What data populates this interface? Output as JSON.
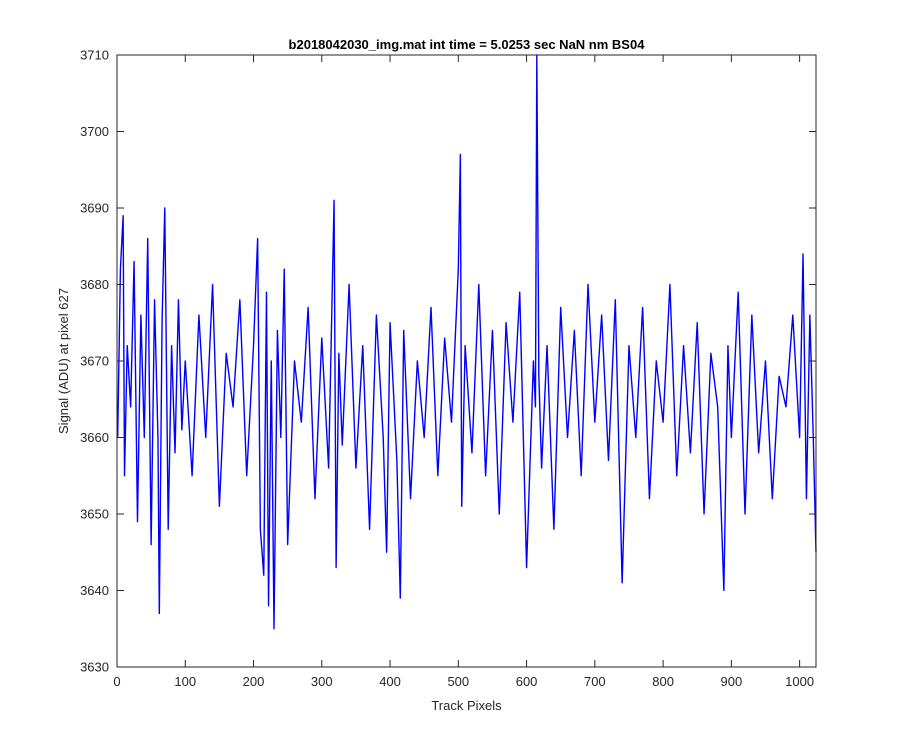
{
  "chart_data": {
    "type": "line",
    "title": "b2018042030_img.mat int time = 5.0253 sec  NaN nm BS04",
    "xlabel": "Track Pixels",
    "ylabel": "Signal (ADU) at pixel 627",
    "xlim": [
      0,
      1024
    ],
    "ylim": [
      3630,
      3710
    ],
    "xticks": [
      0,
      100,
      200,
      300,
      400,
      500,
      600,
      700,
      800,
      900,
      1000
    ],
    "yticks": [
      3630,
      3640,
      3650,
      3660,
      3670,
      3680,
      3690,
      3700,
      3710
    ],
    "grid": false,
    "line_color": "#0000ff",
    "series": [
      {
        "x": [
          1,
          5,
          9,
          11,
          15,
          20,
          25,
          30,
          35,
          40,
          45,
          50,
          55,
          60,
          62,
          66,
          70,
          75,
          80,
          85,
          90,
          95,
          100,
          110,
          120,
          130,
          140,
          150,
          160,
          170,
          180,
          190,
          200,
          206,
          210,
          215,
          219,
          222,
          226,
          230,
          235,
          240,
          245,
          250,
          260,
          270,
          280,
          290,
          300,
          310,
          318,
          321,
          325,
          330,
          340,
          350,
          360,
          370,
          380,
          390,
          395,
          400,
          410,
          415,
          420,
          430,
          440,
          450,
          460,
          470,
          480,
          490,
          500,
          503,
          505,
          510,
          520,
          530,
          540,
          550,
          560,
          570,
          580,
          590,
          600,
          610,
          613,
          615,
          618,
          622,
          630,
          640,
          650,
          660,
          670,
          680,
          690,
          700,
          710,
          720,
          730,
          740,
          750,
          760,
          770,
          780,
          790,
          800,
          810,
          820,
          830,
          840,
          850,
          860,
          870,
          880,
          889,
          895,
          900,
          910,
          920,
          930,
          940,
          950,
          960,
          970,
          980,
          990,
          1000,
          1005,
          1010,
          1015,
          1020,
          1024
        ],
        "y": [
          3660,
          3682,
          3689,
          3655,
          3672,
          3664,
          3683,
          3649,
          3676,
          3660,
          3686,
          3646,
          3678,
          3660,
          3637,
          3675,
          3690,
          3648,
          3672,
          3658,
          3678,
          3661,
          3670,
          3655,
          3676,
          3660,
          3680,
          3651,
          3671,
          3664,
          3678,
          3655,
          3672,
          3686,
          3648,
          3642,
          3679,
          3638,
          3670,
          3635,
          3674,
          3660,
          3682,
          3646,
          3670,
          3662,
          3677,
          3652,
          3673,
          3656,
          3691,
          3643,
          3671,
          3659,
          3680,
          3656,
          3672,
          3648,
          3676,
          3660,
          3645,
          3675,
          3657,
          3639,
          3674,
          3652,
          3670,
          3660,
          3677,
          3655,
          3673,
          3662,
          3682,
          3697,
          3651,
          3672,
          3658,
          3680,
          3655,
          3674,
          3650,
          3675,
          3662,
          3679,
          3643,
          3670,
          3664,
          3710,
          3668,
          3656,
          3672,
          3648,
          3677,
          3660,
          3674,
          3655,
          3680,
          3662,
          3676,
          3657,
          3678,
          3641,
          3672,
          3660,
          3677,
          3652,
          3670,
          3662,
          3680,
          3655,
          3672,
          3658,
          3675,
          3650,
          3671,
          3664,
          3640,
          3672,
          3660,
          3679,
          3650,
          3676,
          3658,
          3670,
          3652,
          3668,
          3664,
          3676,
          3660,
          3684,
          3652,
          3676,
          3660,
          3645
        ]
      }
    ]
  }
}
